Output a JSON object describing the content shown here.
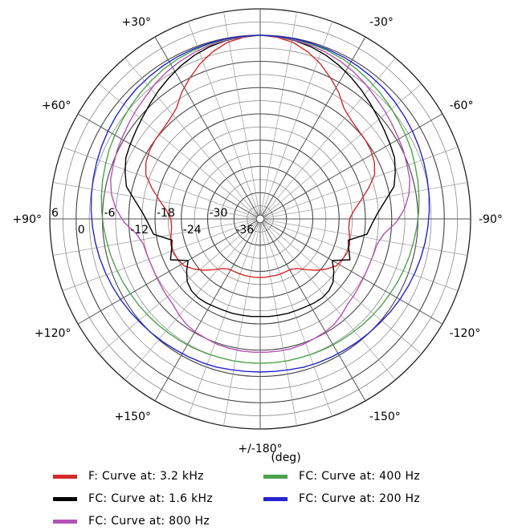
{
  "chart_data": {
    "type": "polar",
    "xlabel": "(deg)",
    "angle_labels": [
      {
        "deg": 30,
        "text": "-30°"
      },
      {
        "deg": 60,
        "text": "-60°"
      },
      {
        "deg": 90,
        "text": "-90°"
      },
      {
        "deg": 120,
        "text": "-120°"
      },
      {
        "deg": 150,
        "text": "-150°"
      },
      {
        "deg": 180,
        "text": "+/-180°"
      },
      {
        "deg": 210,
        "text": "+150°"
      },
      {
        "deg": 240,
        "text": "+120°"
      },
      {
        "deg": 270,
        "text": "+90°"
      },
      {
        "deg": 300,
        "text": "+60°"
      },
      {
        "deg": 330,
        "text": "+30°"
      }
    ],
    "radial_range": [
      -42,
      6
    ],
    "radial_ticks": [
      6,
      0,
      -6,
      -12,
      -18,
      -24,
      -30,
      -36
    ],
    "radial_tick_labels": [
      "6",
      "0",
      "-6",
      "-12",
      "-18",
      "-24",
      "-30",
      "-36"
    ],
    "angle_units": "degrees",
    "series": [
      {
        "name": "F: Curve at: 3.2 kHz",
        "color": "#d42a2a",
        "values": [
          0,
          -0.3,
          -1.0,
          -2.3,
          -4.0,
          -6.0,
          -8.0,
          -10.3,
          -11.3,
          -11.8,
          -12.0,
          -12.3,
          -12.9,
          -14.0,
          -16.3,
          -18.6,
          -20.5,
          -21.6,
          -21.7,
          -21.3,
          -20.8,
          -20.7,
          -21.1,
          -21.6,
          -23.0,
          -24.6,
          -26.3,
          -27.8,
          -28.5,
          -28.6,
          -28.6,
          -28.6,
          -28.7,
          -28.6,
          -28.6,
          -28.6,
          -28.6,
          -28.6,
          -28.6,
          -28.6,
          -28.5,
          -27.8,
          -26.3,
          -24.6,
          -23.0,
          -21.6,
          -21.1,
          -20.7,
          -20.8,
          -21.3,
          -21.7,
          -21.6,
          -20.5,
          -18.6,
          -16.3,
          -14.0,
          -12.9,
          -12.3,
          -12.0,
          -11.8,
          -11.3,
          -10.3,
          -8.0,
          -6.0,
          -4.0,
          -2.3,
          -1.0,
          -0.3
        ]
      },
      {
        "name": "FC: Curve at: 1.6 kHz",
        "color": "#000000",
        "values": [
          0,
          -0.2,
          -0.5,
          -1.0,
          -1.7,
          -2.6,
          -3.6,
          -4.6,
          -5.6,
          -6.5,
          -7.2,
          -7.8,
          -8.3,
          -9.4,
          -10.6,
          -13.2,
          -15.2,
          -16.5,
          -17.4,
          -21.3,
          -20.6,
          -19.5,
          -23.0,
          -21.4,
          -20.0,
          -19.3,
          -19.1,
          -19.2,
          -19.4,
          -19.5,
          -19.5,
          -19.6,
          -19.6,
          -19.7,
          -19.6,
          -19.6,
          -19.5,
          -19.5,
          -19.4,
          -19.2,
          -19.1,
          -19.3,
          -20.0,
          -21.4,
          -23.0,
          -19.5,
          -20.6,
          -21.3,
          -17.4,
          -16.5,
          -15.2,
          -13.2,
          -10.6,
          -9.4,
          -8.3,
          -7.8,
          -7.2,
          -6.5,
          -5.6,
          -4.6,
          -3.6,
          -2.6,
          -1.7,
          -1.0,
          -0.5,
          -0.2
        ]
      },
      {
        "name": "FC: Curve at: 800 Hz",
        "color": "#b352b3",
        "values": [
          0,
          -0.2,
          -0.4,
          -0.7,
          -1.1,
          -1.6,
          -2.2,
          -2.9,
          -3.7,
          -4.3,
          -4.9,
          -5.4,
          -5.8,
          -6.3,
          -6.7,
          -7.6,
          -9.0,
          -10.9,
          -13.5,
          -14.7,
          -14.9,
          -15.0,
          -14.9,
          -14.7,
          -14.4,
          -14.1,
          -13.3,
          -12.6,
          -12.2,
          -12.0,
          -11.7,
          -11.5,
          -11.5,
          -11.5,
          -11.5,
          -11.5,
          -11.6,
          -11.7,
          -12.0,
          -12.2,
          -12.6,
          -13.3,
          -14.1,
          -14.4,
          -14.7,
          -14.9,
          -15.0,
          -14.9,
          -14.7,
          -13.5,
          -10.9,
          -9.0,
          -7.6,
          -6.7,
          -6.3,
          -5.8,
          -5.4,
          -4.9,
          -4.3,
          -3.7,
          -2.9,
          -2.2,
          -1.6,
          -1.1,
          -0.7,
          -0.4,
          -0.2
        ]
      },
      {
        "name": "FC: Curve at: 400 Hz",
        "color": "#4ea24e",
        "values": [
          0,
          -0.1,
          -0.2,
          -0.4,
          -0.6,
          -0.9,
          -1.3,
          -1.8,
          -2.3,
          -2.8,
          -3.3,
          -3.7,
          -4.1,
          -4.6,
          -5.0,
          -5.4,
          -5.8,
          -6.2,
          -6.6,
          -6.9,
          -7.2,
          -7.5,
          -7.8,
          -8.0,
          -8.2,
          -8.4,
          -8.6,
          -8.7,
          -8.8,
          -8.9,
          -9.0,
          -9.0,
          -9.0,
          -9.0,
          -9.0,
          -9.0,
          -9.0,
          -8.9,
          -8.8,
          -8.7,
          -8.6,
          -8.4,
          -8.2,
          -8.0,
          -7.8,
          -7.5,
          -7.2,
          -6.9,
          -6.6,
          -6.2,
          -5.8,
          -5.4,
          -5.0,
          -4.6,
          -4.1,
          -3.7,
          -3.3,
          -2.8,
          -2.3,
          -1.8,
          -1.3,
          -0.9,
          -0.6,
          -0.4,
          -0.2,
          -0.1
        ]
      },
      {
        "name": "FC: Curve at: 200 Hz",
        "color": "#2424cc",
        "values": [
          0,
          -0.1,
          -0.1,
          -0.2,
          -0.3,
          -0.4,
          -0.6,
          -0.8,
          -1.0,
          -1.3,
          -1.6,
          -1.9,
          -2.2,
          -2.5,
          -2.8,
          -3.1,
          -3.4,
          -3.7,
          -4.0,
          -4.3,
          -4.6,
          -4.9,
          -5.2,
          -5.5,
          -5.8,
          -6.0,
          -6.2,
          -6.4,
          -6.5,
          -6.6,
          -6.7,
          -6.9,
          -7.0,
          -7.0,
          -7.0,
          -6.9,
          -6.7,
          -6.6,
          -6.5,
          -6.4,
          -6.2,
          -6.0,
          -5.8,
          -5.5,
          -5.2,
          -4.9,
          -4.6,
          -4.3,
          -4.0,
          -3.7,
          -3.4,
          -3.1,
          -2.8,
          -2.5,
          -2.2,
          -1.9,
          -1.6,
          -1.3,
          -1.0,
          -0.8,
          -0.6,
          -0.4,
          -0.3,
          -0.2,
          -0.1,
          -0.1
        ]
      }
    ],
    "grid": true,
    "legend_position": "bottom"
  },
  "legend": {
    "items": [
      {
        "label": "F: Curve at: 3.2 kHz",
        "color": "#d42a2a"
      },
      {
        "label": "FC: Curve at: 400 Hz",
        "color": "#4ea24e"
      },
      {
        "label": "FC: Curve at: 1.6 kHz",
        "color": "#000000"
      },
      {
        "label": "FC: Curve at: 200 Hz",
        "color": "#2424cc"
      },
      {
        "label": "FC: Curve at: 800 Hz",
        "color": "#b352b3"
      }
    ]
  }
}
